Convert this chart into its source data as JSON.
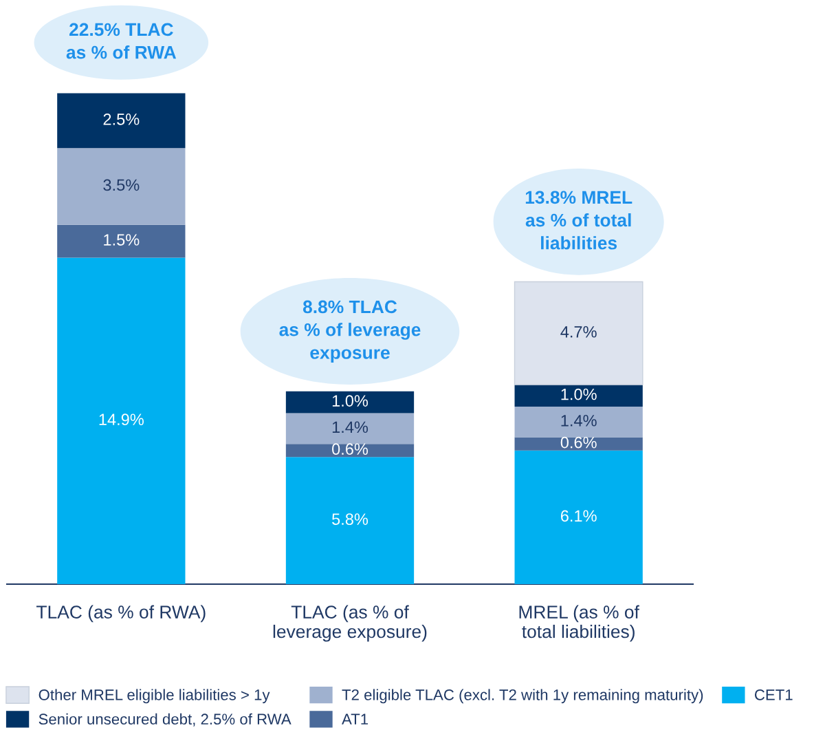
{
  "chart_data": {
    "type": "bar",
    "stacked": true,
    "legend": "bottom",
    "categories": [
      "TLAC (as % of RWA)",
      "TLAC (as % of\nleverage exposure)",
      "MREL (as % of\ntotal liabilities)"
    ],
    "series": [
      {
        "name": "CET1",
        "color": "#00b0f0",
        "values": [
          14.9,
          5.8,
          6.1
        ],
        "value_labels": [
          "14.9%",
          "5.8%",
          "6.1%"
        ]
      },
      {
        "name": "AT1",
        "color": "#4a6a9a",
        "values": [
          1.5,
          0.6,
          0.6
        ],
        "value_labels": [
          "1.5%",
          "0.6%",
          "0.6%"
        ]
      },
      {
        "name": "T2 eligible TLAC (excl. T2 with 1y remaining maturity)",
        "color": "#9fb1cf",
        "values": [
          3.5,
          1.4,
          1.4
        ],
        "value_labels": [
          "3.5%",
          "1.4%",
          "1.4%"
        ]
      },
      {
        "name": "Senior unsecured debt, 2.5% of RWA",
        "color": "#003366",
        "values": [
          2.5,
          1.0,
          1.0
        ],
        "value_labels": [
          "2.5%",
          "1.0%",
          "1.0%"
        ]
      },
      {
        "name": "Other MREL eligible liabilities > 1y",
        "color": "#dde3ee",
        "values": [
          null,
          null,
          4.7
        ],
        "value_labels": [
          null,
          null,
          "4.7%"
        ]
      }
    ],
    "annotations": [
      {
        "text": "22.5% TLAC\nas % of RWA",
        "x": "TLAC (as % of RWA)",
        "y": 22.5
      },
      {
        "text": "8.8% TLAC\nas % of leverage\nexposure",
        "x": "TLAC (as % of\nleverage exposure)",
        "y": 8.8
      },
      {
        "text": "13.8% MREL\nas % of total\nliabilities",
        "x": "MREL (as % of\ntotal liabilities)",
        "y": 13.8
      }
    ]
  }
}
